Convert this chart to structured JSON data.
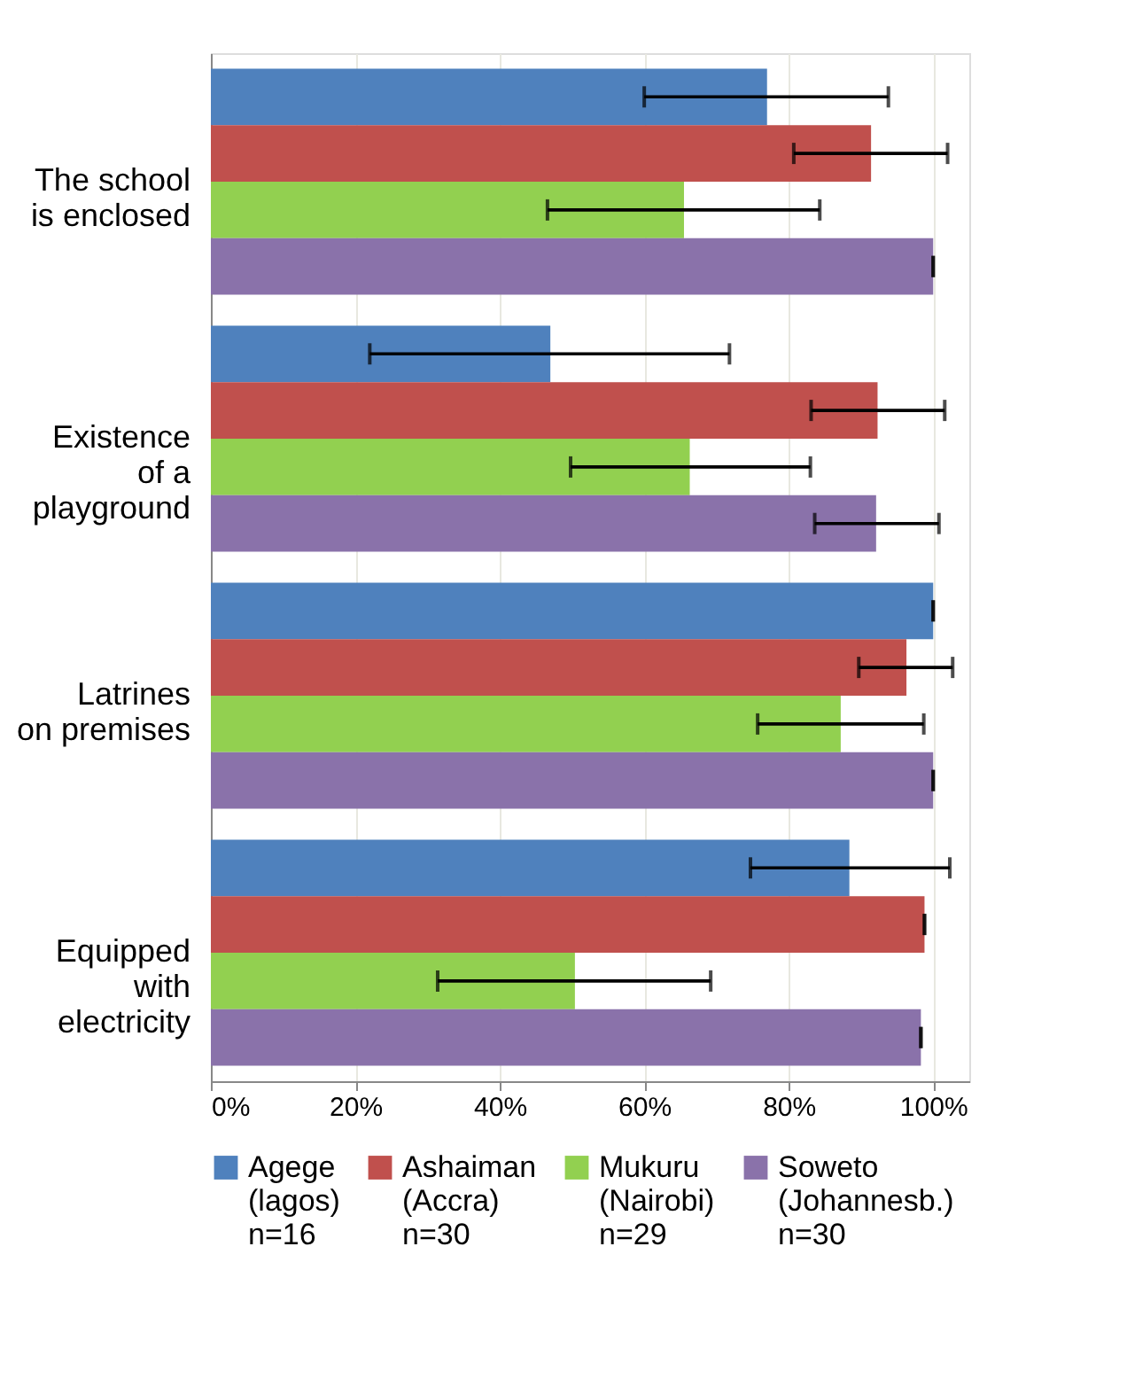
{
  "chart_data": {
    "type": "bar",
    "orientation": "horizontal",
    "categories": [
      "The school\nis enclosed",
      "Existence\nof a\nplayground",
      "Latrines\non premises",
      "Equipped\nwith\nelectricity"
    ],
    "series": [
      {
        "name": "Agege\n(lagos)\nn=16",
        "color": "#4f81bd",
        "values": [
          77,
          47,
          100,
          88.4
        ],
        "errors": [
          [
            60,
            93.8
          ],
          [
            22,
            71.8
          ],
          [
            100,
            100
          ],
          [
            74.7,
            102.3
          ]
        ]
      },
      {
        "name": "Ashaiman\n(Accra)\nn=30",
        "color": "#c0504d",
        "values": [
          91.4,
          92.3,
          96.3,
          98.8
        ],
        "errors": [
          [
            80.7,
            102
          ],
          [
            83.1,
            101.6
          ],
          [
            89.7,
            102.7
          ],
          [
            98.8,
            98.8
          ]
        ]
      },
      {
        "name": "Mukuru\n(Nairobi)\nn=29",
        "color": "#92d050",
        "values": [
          65.5,
          66.3,
          87.2,
          50.4
        ],
        "errors": [
          [
            46.6,
            84.3
          ],
          [
            49.8,
            83
          ],
          [
            75.7,
            98.7
          ],
          [
            31.4,
            69.2
          ]
        ]
      },
      {
        "name": "Soweto\n(Johannesb.)\nn=30",
        "color": "#8a72aa",
        "values": [
          100,
          92.1,
          100,
          98.3
        ],
        "errors": [
          [
            100,
            100
          ],
          [
            83.6,
            100.8
          ],
          [
            100,
            100
          ],
          [
            98.3,
            98.3
          ]
        ]
      }
    ],
    "xlim": [
      0,
      105
    ],
    "xticks": [
      {
        "value": 0,
        "label": "0%"
      },
      {
        "value": 20,
        "label": "20%"
      },
      {
        "value": 40,
        "label": "40%"
      },
      {
        "value": 60,
        "label": "60%"
      },
      {
        "value": 80,
        "label": "80%"
      },
      {
        "value": 100,
        "label": "100%"
      }
    ],
    "grid": "x",
    "legend": "bottom"
  }
}
